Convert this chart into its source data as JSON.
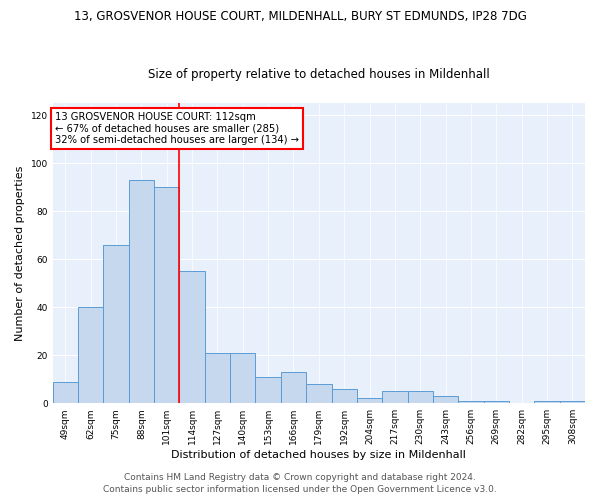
{
  "title1": "13, GROSVENOR HOUSE COURT, MILDENHALL, BURY ST EDMUNDS, IP28 7DG",
  "title2": "Size of property relative to detached houses in Mildenhall",
  "xlabel": "Distribution of detached houses by size in Mildenhall",
  "ylabel": "Number of detached properties",
  "annotation_line1": "13 GROSVENOR HOUSE COURT: 112sqm",
  "annotation_line2": "← 67% of detached houses are smaller (285)",
  "annotation_line3": "32% of semi-detached houses are larger (134) →",
  "footer1": "Contains HM Land Registry data © Crown copyright and database right 2024.",
  "footer2": "Contains public sector information licensed under the Open Government Licence v3.0.",
  "bar_labels": [
    "49sqm",
    "62sqm",
    "75sqm",
    "88sqm",
    "101sqm",
    "114sqm",
    "127sqm",
    "140sqm",
    "153sqm",
    "166sqm",
    "179sqm",
    "192sqm",
    "204sqm",
    "217sqm",
    "230sqm",
    "243sqm",
    "256sqm",
    "269sqm",
    "282sqm",
    "295sqm",
    "308sqm"
  ],
  "bar_values": [
    9,
    40,
    66,
    93,
    90,
    55,
    21,
    21,
    11,
    13,
    8,
    6,
    2,
    5,
    5,
    3,
    1,
    1,
    0,
    1,
    1
  ],
  "bar_color": "#c5d8ed",
  "bar_edge_color": "#5b9bd5",
  "vline_index": 5,
  "ylim": [
    0,
    125
  ],
  "yticks": [
    0,
    20,
    40,
    60,
    80,
    100,
    120
  ],
  "bg_color": "#e8f0fb",
  "annotation_box_color": "white",
  "annotation_border_color": "red",
  "vline_color": "red",
  "title1_fontsize": 8.5,
  "title2_fontsize": 8.5,
  "xlabel_fontsize": 8,
  "ylabel_fontsize": 8,
  "tick_fontsize": 6.5,
  "footer_fontsize": 6.5,
  "annotation_fontsize": 7.2
}
